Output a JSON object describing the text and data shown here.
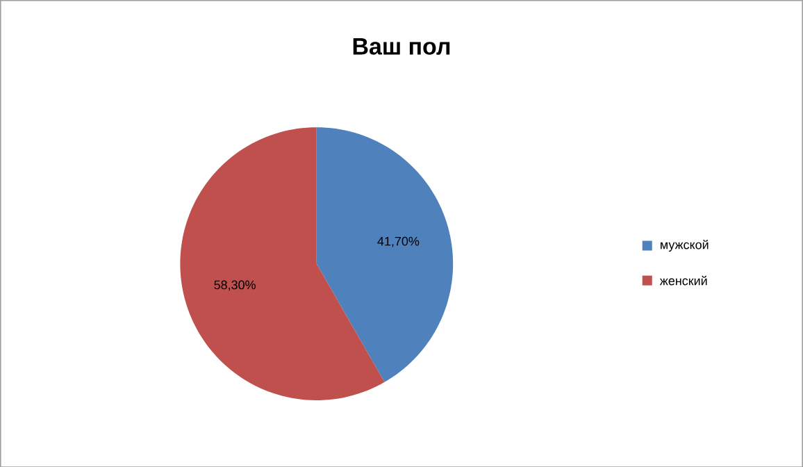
{
  "chart_data": {
    "type": "pie",
    "title": "Ваш пол",
    "categories": [
      "мужской",
      "женский"
    ],
    "values": [
      41.7,
      58.3
    ],
    "colors": [
      "#4f81bd",
      "#c0504d"
    ],
    "value_labels": [
      "41,70%",
      "58,30%"
    ],
    "legend": "right"
  }
}
